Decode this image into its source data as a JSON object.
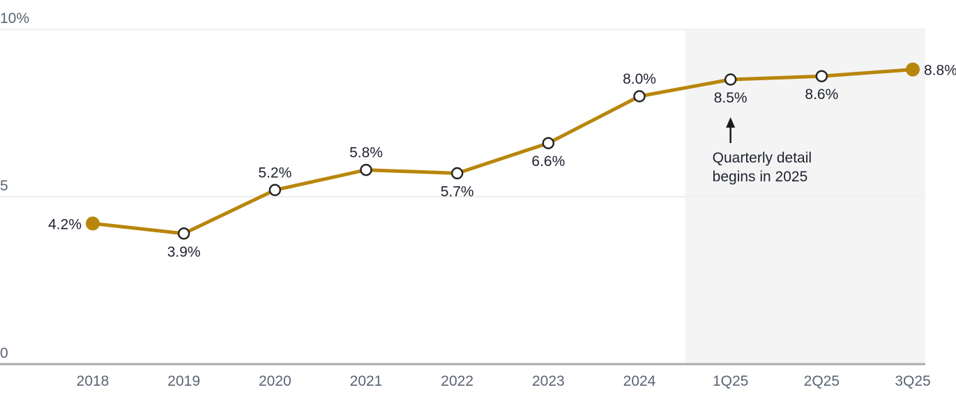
{
  "chart_data": {
    "type": "line",
    "title": "",
    "categories": [
      "2018",
      "2019",
      "2020",
      "2021",
      "2022",
      "2023",
      "2024",
      "1Q25",
      "2Q25",
      "3Q25"
    ],
    "values": [
      4.2,
      3.9,
      5.2,
      5.8,
      5.7,
      6.6,
      8.0,
      8.5,
      8.6,
      8.8
    ],
    "point_labels": [
      "4.2%",
      "3.9%",
      "5.2%",
      "5.8%",
      "5.7%",
      "6.6%",
      "8.0%",
      "8.5%",
      "8.6%",
      "8.8%"
    ],
    "label_placement": [
      "left",
      "below",
      "above",
      "above",
      "below",
      "below",
      "above",
      "below",
      "below",
      "right"
    ],
    "marker_style": [
      "filled",
      "open",
      "open",
      "open",
      "open",
      "open",
      "open",
      "open",
      "open",
      "filled"
    ],
    "ylim": [
      0,
      10
    ],
    "y_ticks": [
      {
        "value": 0,
        "label": "0"
      },
      {
        "value": 5,
        "label": "5"
      },
      {
        "value": 10,
        "label": "10%"
      }
    ],
    "grid": "horizontal",
    "legend": "none",
    "shaded_region": {
      "starts_after_category": "2024",
      "ends_at": "right-edge"
    },
    "annotation": {
      "lines": [
        "Quarterly detail",
        "begins in 2025"
      ],
      "arrow_direction": "up",
      "anchor_category": "1Q25"
    },
    "colors": {
      "line": "#B8860B",
      "marker_filled": "#B8860B",
      "marker_open_fill": "#FFFFFF",
      "marker_stroke": "#262626",
      "data_label": "#1E2230",
      "tick_label": "#5A6472",
      "gridline": "#F0F0F0",
      "axis_line": "#ABABAB",
      "shade": "#F4F4F4",
      "annotation_text": "#1E2230",
      "arrow": "#1A1A1A"
    }
  }
}
